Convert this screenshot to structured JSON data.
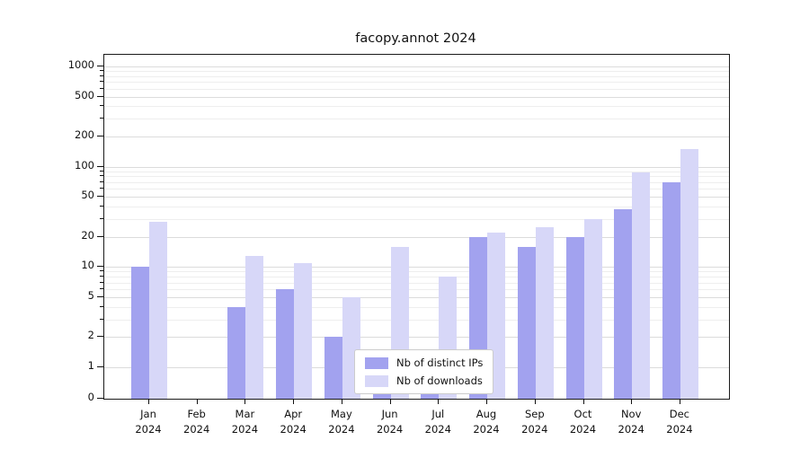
{
  "title": "facopy.annot 2024",
  "legend": {
    "items": [
      {
        "label": "Nb of distinct IPs",
        "color": "#a2a2ef"
      },
      {
        "label": "Nb of downloads",
        "color": "#d7d7f8"
      }
    ]
  },
  "chart_data": {
    "type": "bar",
    "title": "facopy.annot 2024",
    "categories": [
      "Jan 2024",
      "Feb 2024",
      "Mar 2024",
      "Apr 2024",
      "May 2024",
      "Jun 2024",
      "Jul 2024",
      "Aug 2024",
      "Sep 2024",
      "Oct 2024",
      "Nov 2024",
      "Dec 2024"
    ],
    "series": [
      {
        "name": "Nb of distinct IPs",
        "color": "#a2a2ef",
        "values": [
          10,
          0,
          4,
          6,
          2,
          1,
          1,
          20,
          16,
          20,
          38,
          70
        ]
      },
      {
        "name": "Nb of downloads",
        "color": "#d7d7f8",
        "values": [
          28,
          0,
          13,
          11,
          5,
          16,
          8,
          22,
          25,
          30,
          88,
          150
        ]
      }
    ],
    "xlabel": "",
    "ylabel": "",
    "yscale": "log-with-zero",
    "ylim": [
      0,
      1000
    ],
    "yticks": [
      0,
      1,
      2,
      5,
      10,
      20,
      50,
      100,
      200,
      500,
      1000
    ],
    "minor_yticks": [
      3,
      4,
      6,
      7,
      8,
      9,
      30,
      40,
      60,
      70,
      80,
      90,
      300,
      400,
      600,
      700,
      800,
      900
    ],
    "grid": true,
    "legend_position": "lower-center-left"
  }
}
